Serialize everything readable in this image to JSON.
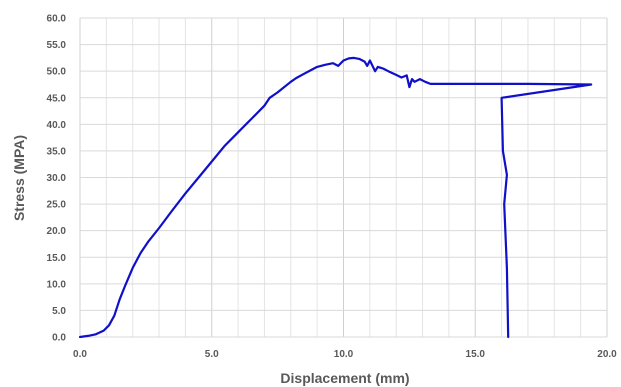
{
  "chart_data": {
    "type": "line",
    "title": "",
    "xlabel": "Displacement (mm)",
    "ylabel": "Stress (MPA)",
    "xlim": [
      0,
      20
    ],
    "ylim": [
      0,
      60
    ],
    "x_ticks": [
      "0.0",
      "5.0",
      "10.0",
      "15.0",
      "20.0"
    ],
    "y_ticks": [
      "0.0",
      "5.0",
      "10.0",
      "15.0",
      "20.0",
      "25.0",
      "30.0",
      "35.0",
      "40.0",
      "45.0",
      "50.0",
      "55.0",
      "60.0"
    ],
    "grid": true,
    "legend": "none",
    "line_color": "#1010c8",
    "series": [
      {
        "x": [
          0.0,
          0.3,
          0.6,
          0.9,
          1.1,
          1.3,
          1.5,
          1.7,
          2.0,
          2.3,
          2.6,
          3.0,
          3.5,
          4.0,
          4.5,
          5.0,
          5.5,
          6.0,
          6.3,
          6.5,
          7.0,
          7.2,
          7.5,
          8.0,
          8.2,
          8.5,
          8.8,
          9.0,
          9.3,
          9.6,
          9.8,
          10.0,
          10.2,
          10.4,
          10.6,
          10.8,
          10.9,
          11.0,
          11.2,
          11.3,
          11.5,
          11.7,
          12.0,
          12.2,
          12.4,
          12.5,
          12.6,
          12.7,
          12.9,
          13.1,
          13.3,
          15.0,
          17.0,
          19.4,
          16.0,
          16.05,
          16.2,
          16.1,
          16.2,
          16.25
        ],
        "y": [
          0.0,
          0.2,
          0.5,
          1.2,
          2.2,
          4.0,
          7.0,
          9.5,
          13.0,
          15.8,
          18.0,
          20.5,
          23.8,
          27.0,
          30.0,
          33.0,
          36.0,
          38.5,
          40.0,
          41.0,
          43.5,
          45.0,
          46.0,
          48.0,
          48.7,
          49.5,
          50.3,
          50.8,
          51.2,
          51.5,
          51.0,
          52.0,
          52.4,
          52.5,
          52.3,
          51.8,
          51.0,
          52.0,
          50.0,
          50.8,
          50.5,
          50.0,
          49.3,
          48.8,
          49.2,
          47.0,
          48.5,
          48.0,
          48.5,
          48.0,
          47.6,
          47.6,
          47.6,
          47.5,
          45.0,
          35.0,
          30.5,
          25.0,
          13.0,
          0.0
        ]
      }
    ]
  }
}
